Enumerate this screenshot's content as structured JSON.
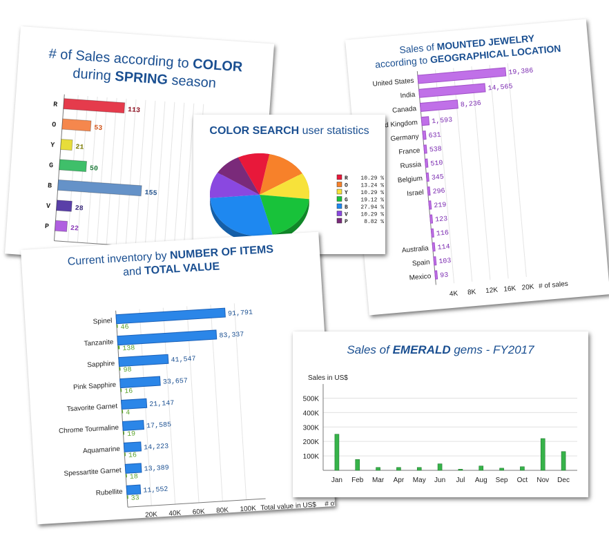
{
  "colors": {
    "title_blue": "#1a4f91",
    "purple": "#c070e8",
    "inventory_blue": "#2b86e8",
    "inventory_green": "#59a12a",
    "emerald_green": "#37b34a"
  },
  "chart_data": [
    {
      "id": "color_spring",
      "type": "bar",
      "orientation": "horizontal",
      "title_parts": [
        {
          "text": "# of Sales according to ",
          "bold": false
        },
        {
          "text": "COLOR",
          "bold": true
        },
        {
          "text": "during ",
          "bold": false,
          "newline": true
        },
        {
          "text": "SPRING",
          "bold": true
        },
        {
          "text": " season",
          "bold": false
        }
      ],
      "categories": [
        "R",
        "O",
        "Y",
        "G",
        "B",
        "V",
        "P"
      ],
      "values": [
        113,
        53,
        21,
        50,
        155,
        28,
        22
      ],
      "bar_colors": [
        "#e53b4c",
        "#f5874d",
        "#e7dd3a",
        "#3fbf6a",
        "#6592c8",
        "#5a3fa8",
        "#b05fe0"
      ],
      "label_colors": [
        "#8a0b1c",
        "#d0541a",
        "#7a7a00",
        "#1f7a3a",
        "#1f4f8a",
        "#3a2a7a",
        "#8a3ab8"
      ],
      "grid": true
    },
    {
      "id": "color_search",
      "type": "pie",
      "title_parts": [
        {
          "text": "COLOR SEARCH",
          "bold": true
        },
        {
          "text": " user statistics",
          "bold": false
        }
      ],
      "categories": [
        "R",
        "O",
        "Y",
        "G",
        "B",
        "V",
        "P"
      ],
      "values": [
        10.29,
        13.24,
        10.29,
        19.12,
        27.94,
        10.29,
        8.82
      ],
      "value_labels": [
        "10.29 %",
        "13.24 %",
        "10.29 %",
        "19.12 %",
        "27.94 %",
        "10.29 %",
        "8.82 %"
      ],
      "slice_colors": [
        "#e8183a",
        "#f7812a",
        "#f7e23a",
        "#18c23a",
        "#1e88f0",
        "#8a48e0",
        "#7a2a7a"
      ],
      "legend_position": "right"
    },
    {
      "id": "mounted_jewelry",
      "type": "bar",
      "orientation": "horizontal",
      "title_parts": [
        {
          "text": "Sales of ",
          "bold": false
        },
        {
          "text": "MOUNTED JEWELRY",
          "bold": true
        },
        {
          "text": "according to ",
          "bold": false,
          "newline": true
        },
        {
          "text": "GEOGRAPHICAL LOCATION",
          "bold": true
        }
      ],
      "categories": [
        "United States",
        "India",
        "Canada",
        "United Kingdom",
        "Germany",
        "France",
        "Russia",
        "Belgium",
        "Israel",
        "",
        "",
        "",
        "Australia",
        "Spain",
        "Mexico"
      ],
      "values": [
        19386,
        14565,
        8236,
        1593,
        631,
        538,
        510,
        345,
        296,
        219,
        123,
        116,
        114,
        103,
        93
      ],
      "value_labels": [
        "19,386",
        "14,565",
        "8,236",
        "1,593",
        "631",
        "538",
        "510",
        "345",
        "296",
        "219",
        "123",
        "116",
        "114",
        "103",
        "93"
      ],
      "xlabel": "# of sales",
      "x_ticks": [
        "4K",
        "8K",
        "12K",
        "16K",
        "20K"
      ],
      "xlim": [
        0,
        21000
      ],
      "grid": true
    },
    {
      "id": "inventory",
      "type": "bar",
      "orientation": "horizontal",
      "title_parts": [
        {
          "text": "Current inventory by ",
          "bold": false
        },
        {
          "text": "NUMBER OF ITEMS",
          "bold": true
        },
        {
          "text": "and ",
          "bold": false,
          "newline": true
        },
        {
          "text": "TOTAL VALUE",
          "bold": true
        }
      ],
      "categories": [
        "Spinel",
        "Tanzanite",
        "Sapphire",
        "Pink Sapphire",
        "Tsavorite Garnet",
        "Chrome Tourmaline",
        "Aquamarine",
        "Spessartite Garnet",
        "Rubellite"
      ],
      "series": [
        {
          "name": "Total value in US$",
          "values": [
            91791,
            83337,
            41547,
            33657,
            21147,
            17585,
            14223,
            13389,
            11552
          ],
          "value_labels": [
            "91,791",
            "83,337",
            "41,547",
            "33,657",
            "21,147",
            "17,585",
            "14,223",
            "13,389",
            "11,552"
          ]
        },
        {
          "name": "# of items",
          "values": [
            46,
            138,
            98,
            16,
            4,
            19,
            16,
            18,
            33
          ],
          "value_labels": [
            "46",
            "138",
            "98",
            "16",
            "4",
            "19",
            "16",
            "18",
            "33"
          ]
        }
      ],
      "x_ticks": [
        "20K",
        "40K",
        "60K",
        "80K",
        "100K"
      ],
      "xlim": [
        0,
        100000
      ],
      "grid": true
    },
    {
      "id": "emerald",
      "type": "bar",
      "title_parts": [
        {
          "text": "Sales of ",
          "bold": false
        },
        {
          "text": "EMERALD",
          "bold": true
        },
        {
          "text": " gems - FY2017",
          "bold": false
        }
      ],
      "categories": [
        "Jan",
        "Feb",
        "Mar",
        "Apr",
        "May",
        "Jun",
        "Jul",
        "Aug",
        "Sep",
        "Oct",
        "Nov",
        "Dec"
      ],
      "values": [
        250000,
        75000,
        20000,
        20000,
        20000,
        45000,
        8000,
        30000,
        15000,
        25000,
        220000,
        130000
      ],
      "ylabel": "Sales in US$",
      "y_ticks": [
        "100K",
        "200K",
        "300K",
        "400K",
        "500K"
      ],
      "ylim": [
        0,
        550000
      ],
      "grid": true
    }
  ]
}
